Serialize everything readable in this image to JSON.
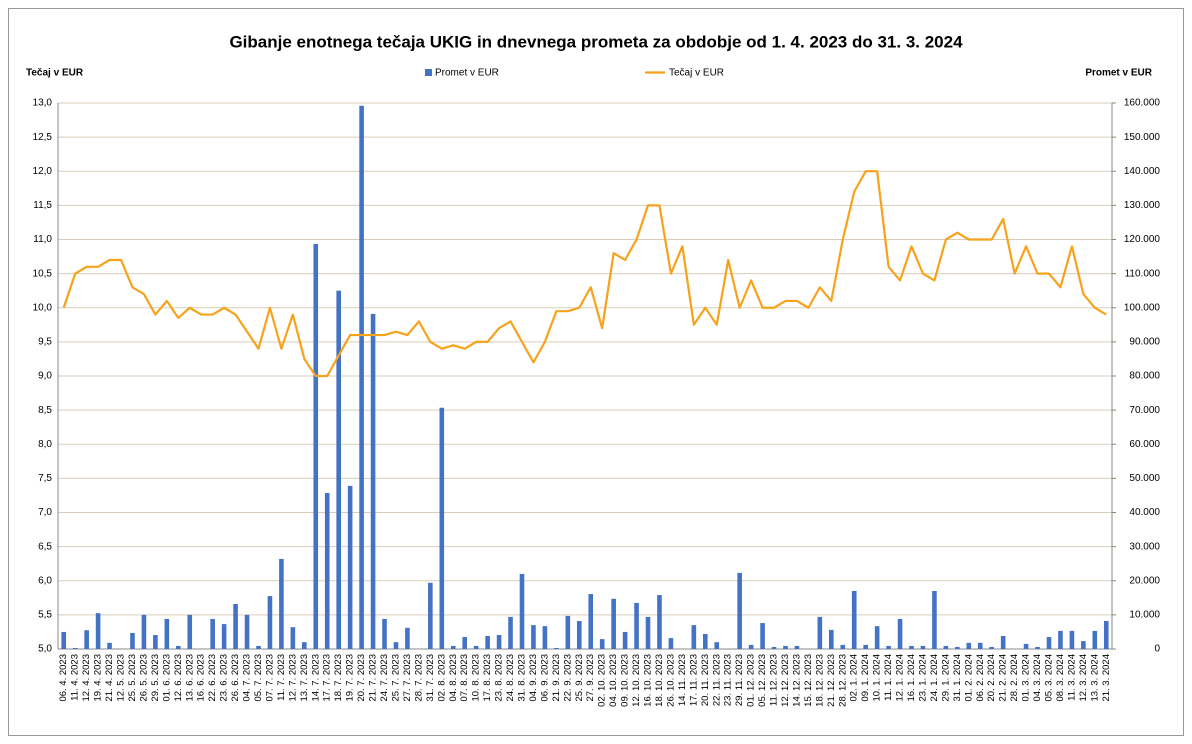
{
  "chart_data": {
    "type": "combo",
    "title": "Gibanje enotnega tečaja UKIG in dnevnega prometa za obdobje od 1. 4. 2023 do 31. 3. 2024",
    "y_label": "Tečaj v EUR",
    "y2_label": "Promet v EUR",
    "categories": [
      "06. 4. 2023",
      "11. 4. 2023",
      "12. 4. 2023",
      "19. 4. 2023",
      "21. 4. 2023",
      "12. 5. 2023",
      "25. 5. 2023",
      "26. 5. 2023",
      "29. 5. 2023",
      "01. 6. 2023",
      "12. 6. 2023",
      "13. 6. 2023",
      "16. 6. 2023",
      "22. 6. 2023",
      "23. 6. 2023",
      "26. 6. 2023",
      "04. 7. 2023",
      "05. 7. 2023",
      "07. 7. 2023",
      "11. 7. 2023",
      "12. 7. 2023",
      "13. 7. 2023",
      "14. 7. 2023",
      "17. 7. 2023",
      "18. 7. 2023",
      "19. 7. 2023",
      "20. 7. 2023",
      "21. 7. 2023",
      "24. 7. 2023",
      "25. 7. 2023",
      "27. 7. 2023",
      "28. 7. 2023",
      "31. 7. 2023",
      "02. 8. 2023",
      "04. 8. 2023",
      "07. 8. 2023",
      "10. 8. 2023",
      "17. 8. 2023",
      "23. 8. 2023",
      "24. 8. 2023",
      "31. 8. 2023",
      "04. 9. 2023",
      "06. 9. 2023",
      "21. 9. 2023",
      "22. 9. 2023",
      "25. 9. 2023",
      "27. 9. 2023",
      "02. 10. 2023",
      "04. 10. 2023",
      "09. 10. 2023",
      "12. 10. 2023",
      "16. 10. 2023",
      "18. 10. 2023",
      "26. 10. 2023",
      "14. 11. 2023",
      "17. 11. 2023",
      "20. 11. 2023",
      "22. 11. 2023",
      "23. 11. 2023",
      "29. 11. 2023",
      "01. 12. 2023",
      "05. 12. 2023",
      "11. 12. 2023",
      "12. 12. 2023",
      "14. 12. 2023",
      "15. 12. 2023",
      "18. 12. 2023",
      "21. 12. 2023",
      "28. 12. 2023",
      "02. 1. 2024",
      "09. 1. 2024",
      "10. 1. 2024",
      "11. 1. 2024",
      "12. 1. 2024",
      "16. 1. 2024",
      "23. 1. 2024",
      "24. 1. 2024",
      "29. 1. 2024",
      "31. 1. 2024",
      "01. 2. 2024",
      "06. 2. 2024",
      "20. 2. 2024",
      "21. 2. 2024",
      "28. 2. 2024",
      "01. 3. 2024",
      "04. 3. 2024",
      "05. 3. 2024",
      "08. 3. 2024",
      "11. 3. 2024",
      "12. 3. 2024",
      "13. 3. 2024",
      "21. 3. 2024"
    ],
    "series": [
      {
        "name": "Promet v EUR",
        "type": "bar",
        "axis": "y2",
        "color": "#4472c4",
        "values": [
          5000,
          300,
          5500,
          10500,
          1800,
          0,
          4700,
          10000,
          4100,
          8800,
          900,
          10000,
          0,
          8800,
          7300,
          13200,
          10000,
          900,
          15500,
          26400,
          6400,
          2000,
          118700,
          45700,
          105000,
          47800,
          159200,
          98200,
          8800,
          2000,
          6200,
          0,
          19400,
          70700,
          900,
          3500,
          900,
          3800,
          4100,
          9400,
          22000,
          7000,
          6700,
          300,
          9700,
          8200,
          16100,
          2900,
          14700,
          5000,
          13500,
          9400,
          15800,
          3200,
          0,
          7000,
          4400,
          2000,
          0,
          22300,
          1200,
          7600,
          600,
          900,
          900,
          0,
          9400,
          5600,
          1200,
          17000,
          1200,
          6700,
          900,
          8800,
          900,
          900,
          17000,
          900,
          600,
          1800,
          1800,
          600,
          3800,
          0,
          1500,
          600,
          3500,
          5300,
          5300,
          2300,
          5300,
          8200
        ]
      },
      {
        "name": "Tečaj v EUR",
        "type": "line",
        "axis": "y",
        "color": "#f7a21b",
        "values": [
          10.0,
          10.5,
          10.6,
          10.6,
          10.7,
          10.7,
          10.3,
          10.2,
          9.9,
          10.1,
          9.85,
          10.0,
          9.9,
          9.9,
          10.0,
          9.9,
          9.65,
          9.4,
          10.0,
          9.4,
          9.9,
          9.25,
          9.0,
          9.0,
          9.3,
          9.6,
          9.6,
          9.6,
          9.6,
          9.65,
          9.6,
          9.8,
          9.5,
          9.4,
          9.45,
          9.4,
          9.5,
          9.5,
          9.7,
          9.8,
          9.5,
          9.2,
          9.5,
          9.95,
          9.95,
          10.0,
          10.3,
          9.7,
          10.8,
          10.7,
          11.0,
          11.5,
          11.5,
          10.5,
          10.9,
          9.75,
          10.0,
          9.75,
          10.7,
          10.0,
          10.4,
          10.0,
          10.0,
          10.1,
          10.1,
          10.0,
          10.3,
          10.1,
          11.0,
          11.7,
          12.0,
          12.0,
          10.6,
          10.4,
          10.9,
          10.5,
          10.4,
          11.0,
          11.1,
          11.0,
          11.0,
          11.0,
          11.3,
          10.5,
          10.9,
          10.5,
          10.5,
          10.3,
          10.9,
          10.2,
          10.0,
          9.9
        ]
      }
    ],
    "ylim": [
      5,
      13
    ],
    "yticks": [
      {
        "value": 5,
        "label": "5,0"
      },
      {
        "value": 5.5,
        "label": "5,5"
      },
      {
        "value": 6,
        "label": "6,0"
      },
      {
        "value": 6.5,
        "label": "6,5"
      },
      {
        "value": 7,
        "label": "7,0"
      },
      {
        "value": 7.5,
        "label": "7,5"
      },
      {
        "value": 8,
        "label": "8,0"
      },
      {
        "value": 8.5,
        "label": "8,5"
      },
      {
        "value": 9,
        "label": "9,0"
      },
      {
        "value": 9.5,
        "label": "9,5"
      },
      {
        "value": 10,
        "label": "10,0"
      },
      {
        "value": 10.5,
        "label": "10,5"
      },
      {
        "value": 11,
        "label": "11,0"
      },
      {
        "value": 11.5,
        "label": "11,5"
      },
      {
        "value": 12,
        "label": "12,0"
      },
      {
        "value": 12.5,
        "label": "12,5"
      },
      {
        "value": 13,
        "label": "13,0"
      }
    ],
    "y2lim": [
      0,
      160000
    ],
    "y2ticks": [
      0,
      {
        "value": 10000,
        "label": "10.000"
      },
      {
        "value": 20000,
        "label": "20.000"
      },
      {
        "value": 30000,
        "label": "30.000"
      },
      {
        "value": 40000,
        "label": "40.000"
      },
      {
        "value": 50000,
        "label": "50.000"
      },
      {
        "value": 60000,
        "label": "60.000"
      },
      {
        "value": 70000,
        "label": "70.000"
      },
      {
        "value": 80000,
        "label": "80.000"
      },
      {
        "value": 90000,
        "label": "90.000"
      },
      {
        "value": 100000,
        "label": "100.000"
      },
      {
        "value": 110000,
        "label": "110.000"
      },
      {
        "value": 120000,
        "label": "120.000"
      },
      {
        "value": 130000,
        "label": "130.000"
      },
      {
        "value": 140000,
        "label": "140.000"
      },
      {
        "value": 150000,
        "label": "150.000"
      },
      {
        "value": 160000,
        "label": "160.000"
      }
    ],
    "grid": true,
    "legend": "top"
  }
}
